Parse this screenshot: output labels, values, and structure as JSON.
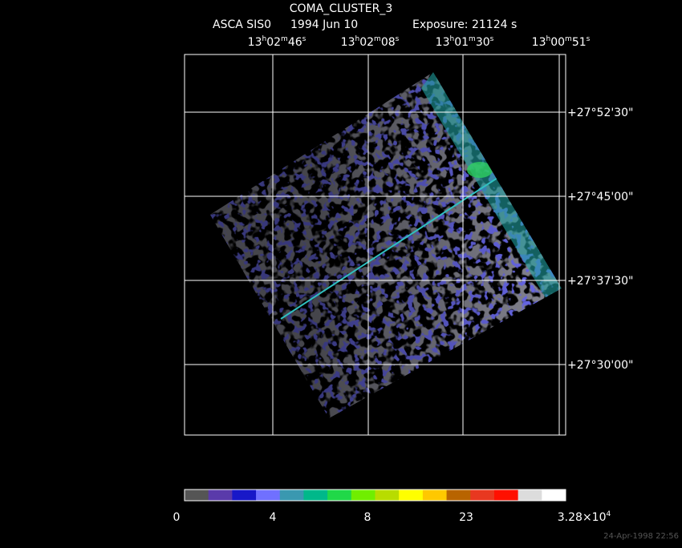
{
  "header": {
    "title": "COMA_CLUSTER_3",
    "instrument": "ASCA SIS0",
    "date": "1994 Jun 10",
    "exposure": "Exposure: 21124 s"
  },
  "ra_labels": [
    [
      "13",
      "h",
      "02",
      "m",
      "46",
      "s"
    ],
    [
      "13",
      "h",
      "02",
      "m",
      "08",
      "s"
    ],
    [
      "13",
      "h",
      "01",
      "m",
      "30",
      "s"
    ],
    [
      "13",
      "h",
      "00",
      "m",
      "51",
      "s"
    ]
  ],
  "dec_labels": [
    "+27°52'30\"",
    "+27°45'00\"",
    "+27°37'30\"",
    "+27°30'00\""
  ],
  "colorbar": {
    "colors": [
      "#555555",
      "#5a3aaa",
      "#1818c8",
      "#7070ff",
      "#3a98b0",
      "#00b88a",
      "#20d848",
      "#70ee00",
      "#b8dc00",
      "#ffff00",
      "#ffc800",
      "#b86400",
      "#e83820",
      "#ff1000",
      "#dcdcdc",
      "#ffffff"
    ],
    "labels": [
      [
        "0"
      ],
      [
        "4"
      ],
      [
        "8"
      ],
      [
        "23"
      ],
      [
        "3.28×10",
        "4"
      ]
    ]
  },
  "timestamp": "24-Apr-1998 22:56"
}
